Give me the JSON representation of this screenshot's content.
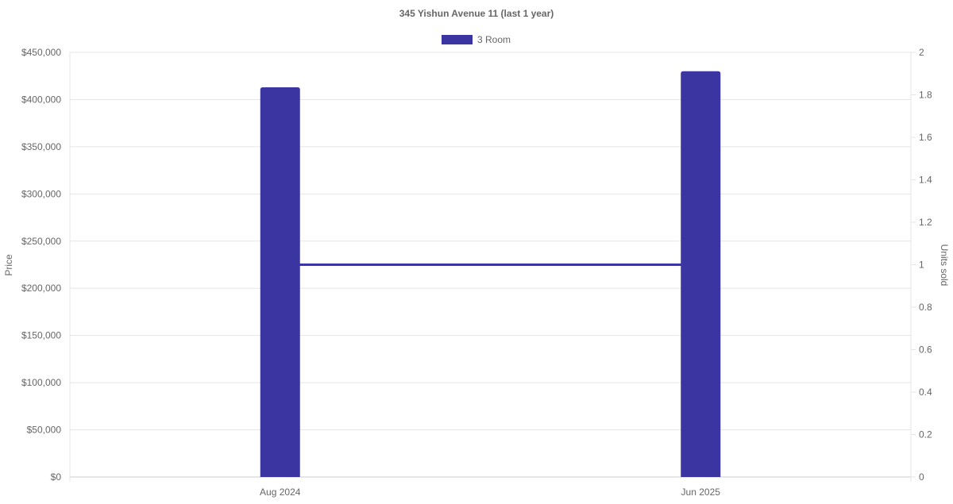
{
  "chart_data": {
    "type": "bar",
    "title": "345 Yishun Avenue 11 (last 1 year)",
    "categories": [
      "Aug 2024",
      "Jun 2025"
    ],
    "series": [
      {
        "name": "3 Room",
        "type": "bar",
        "axis": "left",
        "values": [
          413000,
          430000
        ],
        "color": "#3a35a0"
      },
      {
        "type": "line",
        "axis": "right",
        "values": [
          1,
          1
        ],
        "color": "#3a35a0"
      }
    ],
    "ylabel": "Price",
    "ylabel_right": "Units sold",
    "ylim": [
      0,
      450000
    ],
    "ylim_right": [
      0,
      2
    ],
    "yticks": [
      "$0",
      "$50,000",
      "$100,000",
      "$150,000",
      "$200,000",
      "$250,000",
      "$300,000",
      "$350,000",
      "$400,000",
      "$450,000"
    ],
    "yticks_right": [
      "0",
      "0.2",
      "0.4",
      "0.6",
      "0.8",
      "1",
      "1.2",
      "1.4",
      "1.6",
      "1.8",
      "2"
    ],
    "grid": true,
    "legend": "top-center"
  }
}
